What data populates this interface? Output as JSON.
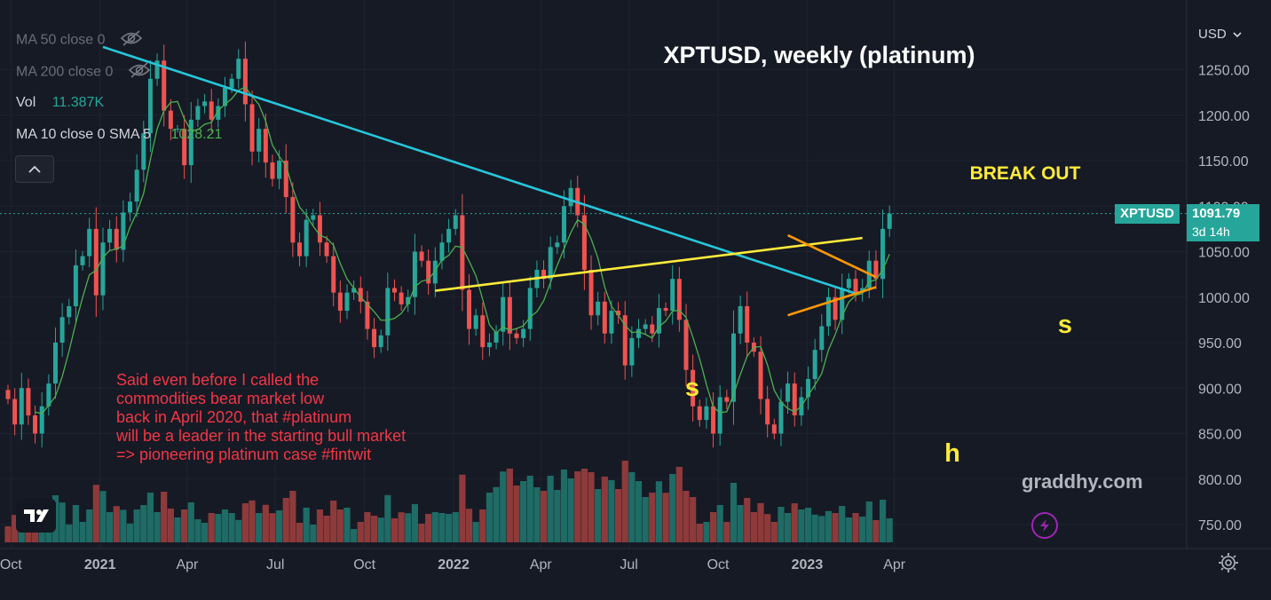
{
  "chart_data": {
    "type": "candlestick",
    "symbol": "XPTUSD",
    "title": "XPTUSD, weekly (platinum)",
    "currency": "USD",
    "ylim": [
      730,
      1290
    ],
    "y_ticks": [
      750,
      800,
      850,
      900,
      950,
      1000,
      1050,
      1100,
      1150,
      1200,
      1250
    ],
    "y_tick_labels": [
      "750.00",
      "800.00",
      "850.00",
      "900.00",
      "950.00",
      "1000.00",
      "1050.00",
      "1100.00",
      "1150.00",
      "1200.00",
      "1250.00"
    ],
    "x_ticks": [
      {
        "label": "Oct",
        "date": "2020-10-01"
      },
      {
        "label": "2021",
        "date": "2021-01-01"
      },
      {
        "label": "Apr",
        "date": "2021-04-01"
      },
      {
        "label": "Jul",
        "date": "2021-07-01"
      },
      {
        "label": "Oct",
        "date": "2021-10-01"
      },
      {
        "label": "2022",
        "date": "2022-01-01"
      },
      {
        "label": "Apr",
        "date": "2022-04-01"
      },
      {
        "label": "Jul",
        "date": "2022-07-01"
      },
      {
        "label": "Oct",
        "date": "2022-10-01"
      },
      {
        "label": "2023",
        "date": "2023-01-01"
      },
      {
        "label": "Apr",
        "date": "2023-04-01"
      }
    ],
    "first_week": "2020-09-28",
    "closes": [
      888,
      860,
      900,
      870,
      850,
      880,
      905,
      950,
      978,
      990,
      1035,
      1045,
      1075,
      1002,
      1060,
      1075,
      1052,
      1093,
      1105,
      1140,
      1180,
      1240,
      1260,
      1205,
      1185,
      1185,
      1145,
      1195,
      1210,
      1215,
      1195,
      1210,
      1230,
      1240,
      1262,
      1212,
      1160,
      1185,
      1148,
      1130,
      1150,
      1110,
      1060,
      1045,
      1085,
      1090,
      1060,
      1045,
      1005,
      985,
      1005,
      1010,
      995,
      965,
      945,
      958,
      1010,
      1005,
      992,
      1000,
      1050,
      1040,
      1015,
      1040,
      1060,
      1075,
      1090,
      1008,
      965,
      980,
      945,
      950,
      962,
      1000,
      960,
      955,
      965,
      1010,
      1030,
      1020,
      1055,
      1060,
      1100,
      1120,
      1090,
      1030,
      980,
      995,
      960,
      985,
      980,
      925,
      955,
      965,
      970,
      960,
      988,
      985,
      1020,
      975,
      920,
      880,
      865,
      880,
      850,
      890,
      885,
      960,
      990,
      950,
      940,
      888,
      860,
      850,
      885,
      905,
      870,
      890,
      910,
      942,
      968,
      1000,
      975,
      1010,
      1020,
      1005,
      1010,
      1040,
      1020,
      1075,
      1091.79
    ],
    "sma_label": "MA 10 close 0 SMA 5",
    "sma_last": "1028.21",
    "volume_label": "Vol",
    "volume_last": "11.387K",
    "last_price": "1091.79",
    "countdown": "3d 14h",
    "trendlines": [
      {
        "name": "descending-resistance",
        "color": "#26c6da",
        "from": {
          "week": 14,
          "price": 1275
        },
        "to": {
          "week": 125,
          "price": 1004
        }
      },
      {
        "name": "neckline",
        "color": "#ffeb3b",
        "from": {
          "week": 63,
          "price": 1007
        },
        "to": {
          "week": 126,
          "price": 1065
        }
      },
      {
        "name": "wedge-upper",
        "color": "#ff9800",
        "from": {
          "week": 115,
          "price": 1068
        },
        "to": {
          "week": 128,
          "price": 1022
        }
      },
      {
        "name": "wedge-lower",
        "color": "#ff9800",
        "from": {
          "week": 115,
          "price": 980
        },
        "to": {
          "week": 128,
          "price": 1011
        }
      }
    ],
    "annotations": [
      {
        "text": "BREAK OUT",
        "color": "#ffeb3b"
      },
      {
        "text": "s",
        "color": "#ffeb3b",
        "role": "left-shoulder"
      },
      {
        "text": "h",
        "color": "#ffeb3b",
        "role": "head"
      },
      {
        "text": "s",
        "color": "#ffeb3b",
        "role": "right-shoulder"
      }
    ]
  },
  "legend": {
    "ma50": "MA 50 close 0",
    "ma200": "MA 200 close 0",
    "vol": "Vol",
    "vol_value": "11.387K",
    "sma": "MA 10 close 0 SMA 5",
    "sma_value": "1028.21"
  },
  "note": {
    "lines": [
      "Said even before I called the",
      "commodities bear market low",
      "back in April 2020, that #platinum",
      "will be a leader in the starting bull market",
      "=> pioneering platinum case #fintwit"
    ],
    "color": "#f23645"
  },
  "watermark": "graddhy.com",
  "header": {
    "currency": "USD",
    "symbol_tag": "XPTUSD",
    "price": "1091.79",
    "countdown": "3d 14h"
  },
  "colors": {
    "up": "#26a69a",
    "down": "#ef5350",
    "vol_up": "#1f6b65",
    "vol_down": "#8e3a3b",
    "sma": "#4caf50",
    "background": "#161a25"
  },
  "icons": {
    "hide": "eye-off-icon",
    "collapse": "chevron-up-icon",
    "logo": "tradingview-logo-icon",
    "settings": "gear-icon",
    "alert": "lightning-icon",
    "currency_menu": "chevron-down-icon"
  }
}
